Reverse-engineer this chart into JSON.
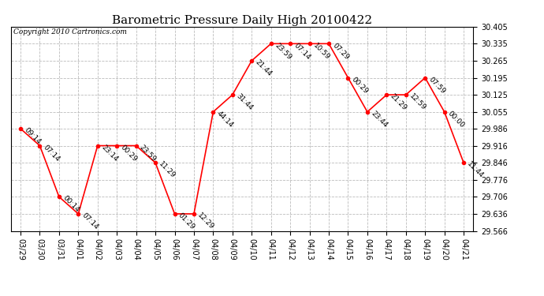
{
  "title": "Barometric Pressure Daily High 20100422",
  "copyright": "Copyright 2010 Cartronics.com",
  "x_labels": [
    "03/29",
    "03/30",
    "03/31",
    "04/01",
    "04/02",
    "04/03",
    "04/04",
    "04/05",
    "04/06",
    "04/07",
    "04/08",
    "04/09",
    "04/10",
    "04/11",
    "04/12",
    "04/13",
    "04/14",
    "04/15",
    "04/16",
    "04/17",
    "04/18",
    "04/19",
    "04/20",
    "04/21"
  ],
  "y_values": [
    29.986,
    29.916,
    29.706,
    29.636,
    29.916,
    29.916,
    29.916,
    29.846,
    29.636,
    29.636,
    30.055,
    30.125,
    30.265,
    30.335,
    30.335,
    30.335,
    30.335,
    30.195,
    30.055,
    30.125,
    30.125,
    30.195,
    30.055,
    29.846
  ],
  "point_labels": [
    "09:14",
    "07:14",
    "00:14",
    "07:14",
    "23:14",
    "00:29",
    "23:59",
    "11:29",
    "01:29",
    "12:29",
    "44:14",
    "31:44",
    "21:44",
    "23:59",
    "07:14",
    "10:59",
    "07:29",
    "00:29",
    "23:44",
    "21:29",
    "12:59",
    "07:59",
    "00:00",
    "11:44"
  ],
  "ylim_min": 29.566,
  "ylim_max": 30.405,
  "y_ticks": [
    29.566,
    29.636,
    29.706,
    29.776,
    29.846,
    29.916,
    29.986,
    30.055,
    30.125,
    30.195,
    30.265,
    30.335,
    30.405
  ],
  "line_color": "red",
  "marker_color": "red",
  "bg_color": "white",
  "grid_color": "#bbbbbb",
  "title_fontsize": 11,
  "copyright_fontsize": 6.5,
  "label_fontsize": 6.5,
  "tick_fontsize": 7
}
